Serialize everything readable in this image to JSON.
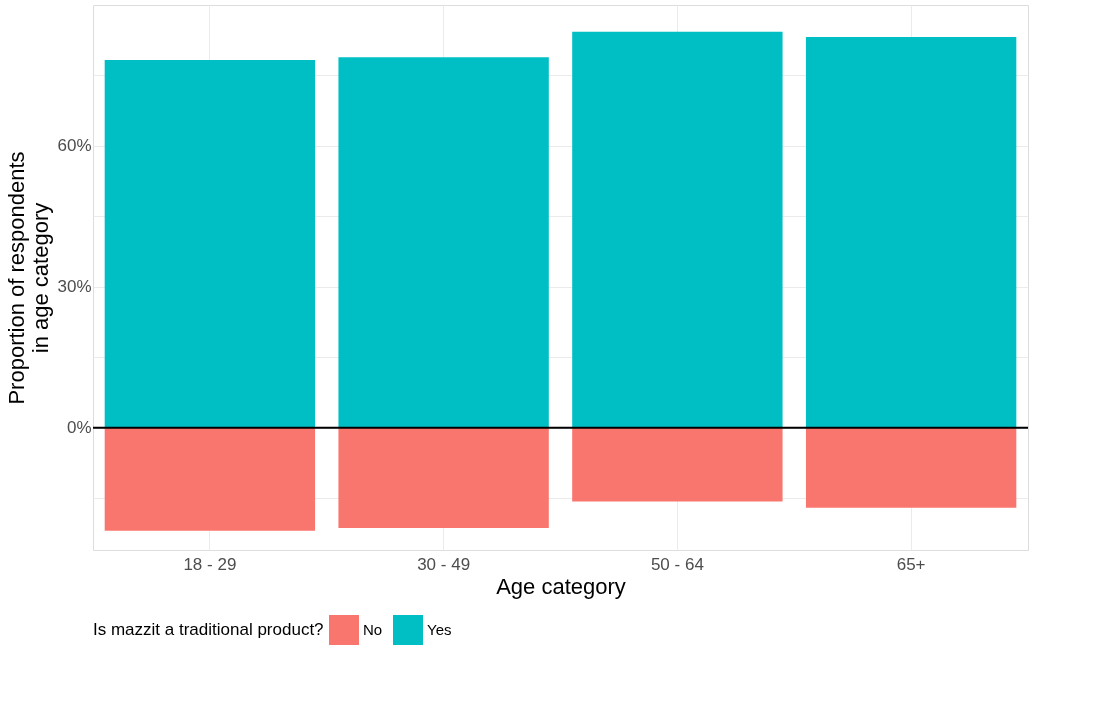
{
  "chart_data": {
    "type": "bar",
    "xlabel": "Age category",
    "ylabel": "Proportion of respondents\nin age category",
    "legend_title": "Is mazzit a traditional product?",
    "categories": [
      "18 - 29",
      "30 - 49",
      "50 - 64",
      "65+"
    ],
    "series": [
      {
        "name": "No",
        "color": "#f8766d",
        "values": [
          -21.9,
          -21.3,
          -15.7,
          -17.0
        ]
      },
      {
        "name": "Yes",
        "color": "#00bfc4",
        "values": [
          78.3,
          78.9,
          84.3,
          83.2
        ]
      }
    ],
    "stacked": true,
    "ylim": [
      -26,
      90
    ],
    "yticks": [
      {
        "value": -15,
        "label": null
      },
      {
        "value": 0,
        "label": "0%"
      },
      {
        "value": 15,
        "label": null
      },
      {
        "value": 30,
        "label": "30%"
      },
      {
        "value": 45,
        "label": null
      },
      {
        "value": 60,
        "label": "60%"
      },
      {
        "value": 75,
        "label": null
      }
    ],
    "ref_lines": [
      {
        "axis": "y",
        "value": 0,
        "label": null,
        "color": "#000000"
      }
    ],
    "grid": true,
    "legend": "bottom"
  }
}
